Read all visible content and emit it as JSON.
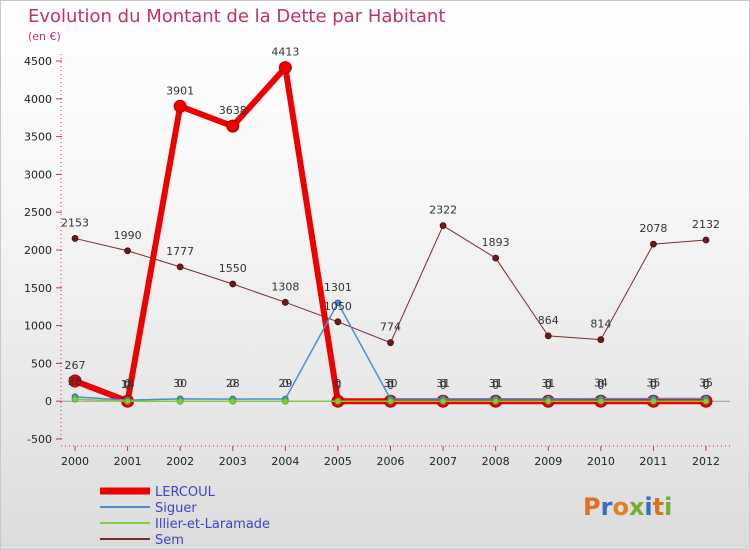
{
  "chart_data": {
    "type": "line",
    "title": "Evolution du Montant de la Dette par Habitant",
    "subtitle": "(en €)",
    "x": [
      "2000",
      "2001",
      "2002",
      "2003",
      "2004",
      "2005",
      "2006",
      "2007",
      "2008",
      "2009",
      "2010",
      "2011",
      "2012"
    ],
    "ylim": [
      -500,
      4500
    ],
    "yticks": [
      -500,
      0,
      500,
      1000,
      1500,
      2000,
      2500,
      3000,
      3500,
      4000,
      4500
    ],
    "series": [
      {
        "name": "LERCOUL",
        "color": "#ee0000",
        "values": [
          267,
          0,
          3901,
          3638,
          4413,
          0,
          0,
          0,
          0,
          0,
          0,
          0,
          0
        ],
        "labels": [
          "267",
          "0",
          "3901",
          "3638",
          "4413",
          "0",
          "0",
          "0",
          "0",
          "0",
          "0",
          "0",
          "0"
        ]
      },
      {
        "name": "Siguer",
        "color": "#4a90d0",
        "values": [
          58,
          14,
          30,
          28,
          29,
          1301,
          30,
          31,
          31,
          31,
          34,
          35,
          35
        ],
        "labels": [
          "58",
          "14",
          "30",
          "28",
          "29",
          "1301",
          "30",
          "31",
          "31",
          "31",
          "34",
          "35",
          "35"
        ]
      },
      {
        "name": "Illier-et-Laramade",
        "color": "#80cc40",
        "values": [
          26,
          0,
          0,
          0,
          0,
          0,
          0,
          0,
          0,
          0,
          0,
          0,
          0
        ],
        "labels": [
          "26",
          "0",
          "0",
          "0",
          "0",
          "0",
          "0",
          "0",
          "0",
          "0",
          "0",
          "0",
          "0"
        ]
      },
      {
        "name": "Sem",
        "color": "#7a2a2a",
        "values": [
          2153,
          1990,
          1777,
          1550,
          1308,
          1050,
          774,
          2322,
          1893,
          864,
          814,
          2078,
          2132
        ],
        "labels": [
          "2153",
          "1990",
          "1777",
          "1550",
          "1308",
          "1050",
          "774",
          "2322",
          "1893",
          "864",
          "814",
          "2078",
          "2132"
        ]
      }
    ]
  },
  "logo": {
    "letters": [
      "P",
      "r",
      "o",
      "x",
      "i",
      "t",
      "i"
    ]
  }
}
